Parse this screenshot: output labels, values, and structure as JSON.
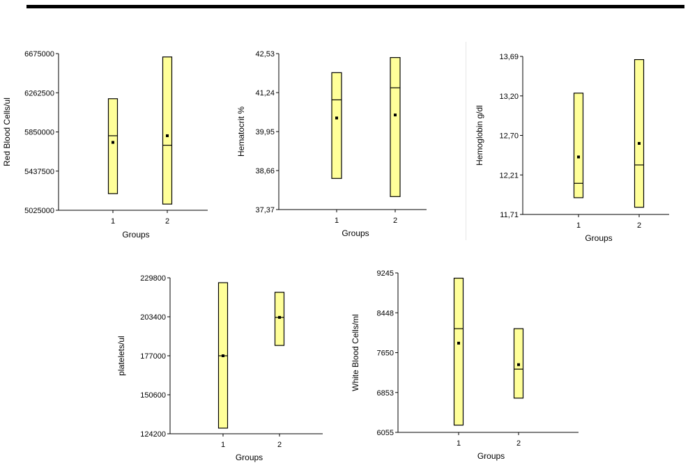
{
  "chart_data": [
    {
      "type": "box",
      "xlabel": "Groups",
      "ylabel": "Red Blood Cells/ul",
      "ylim": [
        5025000,
        6675000
      ],
      "yticks": [
        "5025000",
        "5437500",
        "5850000",
        "6262500",
        "6675000"
      ],
      "categories": [
        "1",
        "2"
      ],
      "groups": [
        {
          "label": "1",
          "min": 5200000,
          "max": 6200000,
          "median": 5810000,
          "mean": 5740000
        },
        {
          "label": "2",
          "min": 5090000,
          "max": 6640000,
          "median": 5710000,
          "mean": 5810000
        }
      ]
    },
    {
      "type": "box",
      "xlabel": "Groups",
      "ylabel": "Hematocrit %",
      "ylim": [
        37.37,
        42.53
      ],
      "yticks": [
        "37,37",
        "38,66",
        "39,95",
        "41,24",
        "42,53"
      ],
      "categories": [
        "1",
        "2"
      ],
      "groups": [
        {
          "label": "1",
          "min": 38.4,
          "max": 41.9,
          "median": 41.0,
          "mean": 40.4
        },
        {
          "label": "2",
          "min": 37.8,
          "max": 42.4,
          "median": 41.4,
          "mean": 40.5
        }
      ]
    },
    {
      "type": "box",
      "xlabel": "Groups",
      "ylabel": "Hemoglobin g/dl",
      "ylim": [
        11.71,
        13.69
      ],
      "yticks": [
        "11,71",
        "12,21",
        "12,70",
        "13,20",
        "13,69"
      ],
      "categories": [
        "1",
        "2"
      ],
      "groups": [
        {
          "label": "1",
          "min": 11.92,
          "max": 13.23,
          "median": 12.1,
          "mean": 12.43
        },
        {
          "label": "2",
          "min": 11.8,
          "max": 13.65,
          "median": 12.33,
          "mean": 12.6
        }
      ]
    },
    {
      "type": "box",
      "xlabel": "Groups",
      "ylabel": "platelets/ul",
      "ylim": [
        124200,
        229800
      ],
      "yticks": [
        "124200",
        "150600",
        "177000",
        "203400",
        "229800"
      ],
      "categories": [
        "1",
        "2"
      ],
      "groups": [
        {
          "label": "1",
          "min": 128000,
          "max": 226500,
          "median": 177000,
          "mean": 177000
        },
        {
          "label": "2",
          "min": 184000,
          "max": 220000,
          "median": 203000,
          "mean": 203000
        }
      ]
    },
    {
      "type": "box",
      "xlabel": "Groups",
      "ylabel": "White Blood Cells/ml",
      "ylim": [
        6055,
        9245
      ],
      "yticks": [
        "6055",
        "6853",
        "7650",
        "8448",
        "9245"
      ],
      "categories": [
        "1",
        "2"
      ],
      "groups": [
        {
          "label": "1",
          "min": 6200,
          "max": 9140,
          "median": 8130,
          "mean": 7840
        },
        {
          "label": "2",
          "min": 6740,
          "max": 8130,
          "median": 7320,
          "mean": 7410
        }
      ]
    }
  ],
  "colors": {
    "fill": "#ffff99",
    "stroke": "#000000"
  }
}
